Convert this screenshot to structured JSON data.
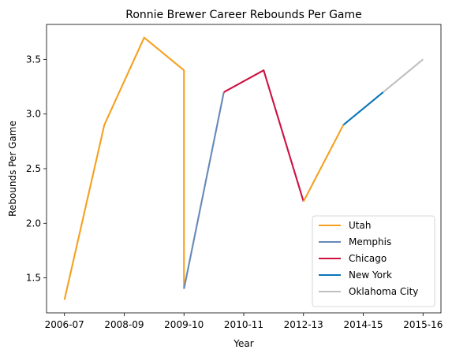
{
  "chart_data": {
    "type": "line",
    "title": "Ronnie Brewer Career Rebounds Per Game",
    "xlabel": "Year",
    "ylabel": "Rebounds Per Game",
    "x_ticks": [
      {
        "x": 0,
        "label": "2006-07"
      },
      {
        "x": 1.5,
        "label": "2008-09"
      },
      {
        "x": 3,
        "label": "2009-10"
      },
      {
        "x": 4.5,
        "label": "2010-11"
      },
      {
        "x": 6,
        "label": "2012-13"
      },
      {
        "x": 7.5,
        "label": "2014-15"
      },
      {
        "x": 9,
        "label": "2015-16"
      }
    ],
    "y_ticks": [
      1.5,
      2.0,
      2.5,
      3.0,
      3.5
    ],
    "xlim": [
      -0.45,
      9.45
    ],
    "ylim": [
      1.18,
      3.82
    ],
    "grid": false,
    "legend_position": "bottom-right",
    "series": [
      {
        "name": "Utah",
        "color": "#f5a020",
        "points": [
          [
            0,
            1.3
          ],
          [
            1,
            2.9
          ],
          [
            2,
            3.7
          ],
          [
            3,
            3.4
          ],
          [
            3,
            1.4
          ]
        ]
      },
      {
        "name": "Memphis",
        "color": "#6689b8",
        "points": [
          [
            3,
            1.4
          ],
          [
            4,
            3.2
          ]
        ]
      },
      {
        "name": "Chicago",
        "color": "#ce1141",
        "points": [
          [
            4,
            3.2
          ],
          [
            5,
            3.4
          ],
          [
            6,
            2.2
          ]
        ]
      },
      {
        "name": "New York",
        "color": "#0a74b8",
        "points": [
          [
            7,
            2.9
          ],
          [
            8,
            3.2
          ]
        ]
      },
      {
        "name": "Oklahoma City",
        "color": "#bfbfbf",
        "points": [
          [
            8,
            3.2
          ],
          [
            9,
            3.5
          ]
        ]
      }
    ],
    "extra_segments": [
      {
        "series": "Utah",
        "points": [
          [
            6,
            2.2
          ],
          [
            7,
            2.9
          ]
        ]
      }
    ]
  }
}
